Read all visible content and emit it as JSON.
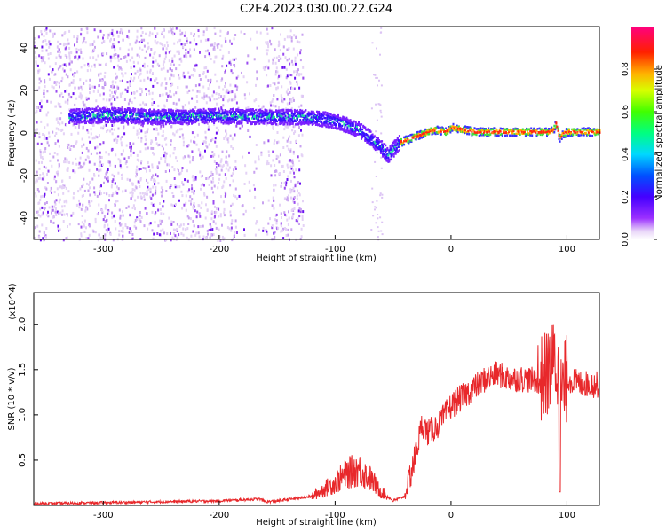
{
  "figure_title": "C2E4.2023.030.00.22.G24",
  "chart_data": [
    {
      "type": "heatmap",
      "xlabel": "Height of straight line (km)",
      "ylabel": "Frequency (Hz)",
      "xlim": [
        -360,
        128
      ],
      "ylim": [
        -50,
        50
      ],
      "x_ticks": [
        -300,
        -200,
        -100,
        0,
        100
      ],
      "y_ticks": [
        -40,
        -20,
        0,
        20,
        40
      ],
      "colorbar": {
        "label": "Normalized spectral amplitude",
        "range": [
          0,
          1
        ],
        "ticks": [
          "0.0",
          "0.2",
          "0.4",
          "0.6",
          "0.8"
        ],
        "colormap": "rainbow (white→purple→blue→cyan→green→yellow→red→magenta)"
      },
      "ridge": {
        "x": [
          -330,
          -300,
          -250,
          -200,
          -150,
          -130,
          -110,
          -100,
          -90,
          -80,
          -70,
          -60,
          -55,
          -45,
          -35,
          -25,
          -15,
          -5,
          0,
          10,
          20,
          40,
          60,
          80,
          85,
          88,
          90,
          93,
          96,
          100,
          110,
          128
        ],
        "y": [
          8,
          9,
          8,
          8.5,
          8,
          8,
          7,
          6,
          4,
          2,
          -2,
          -7,
          -10,
          -4,
          -2,
          0,
          2,
          1,
          3,
          2,
          1,
          1,
          1,
          1,
          1,
          2,
          5,
          -2,
          0,
          1,
          1,
          1
        ]
      }
    },
    {
      "type": "line",
      "xlabel": "Height of straight line (km)",
      "ylabel": "SNR (10 * v/v)",
      "y_multiplier": "(x10^4)",
      "xlim": [
        -360,
        128
      ],
      "ylim": [
        0,
        23500
      ],
      "x_ticks": [
        -300,
        -200,
        -100,
        0,
        100
      ],
      "y_ticks": [
        0.5,
        1.0,
        1.5,
        2.0
      ],
      "y_tick_labels": [
        "0.5",
        "1.0",
        "1.5",
        "2.0"
      ],
      "series": [
        {
          "color": "#e8282b",
          "x": [
            -360,
            -300,
            -250,
            -200,
            -165,
            -160,
            -150,
            -120,
            -100,
            -90,
            -80,
            -75,
            -70,
            -60,
            -50,
            -40,
            -30,
            -25,
            -20,
            -10,
            0,
            10,
            20,
            30,
            40,
            50,
            60,
            70,
            80,
            85,
            90,
            95,
            100,
            110,
            128
          ],
          "y": [
            200,
            300,
            400,
            500,
            700,
            400,
            500,
            1000,
            2500,
            3500,
            4000,
            3500,
            3000,
            1500,
            500,
            1000,
            6000,
            9000,
            8000,
            9000,
            11000,
            12000,
            13000,
            14000,
            14500,
            14000,
            14000,
            13800,
            14000,
            15000,
            16000,
            12000,
            14000,
            13500,
            13300
          ]
        }
      ]
    }
  ]
}
